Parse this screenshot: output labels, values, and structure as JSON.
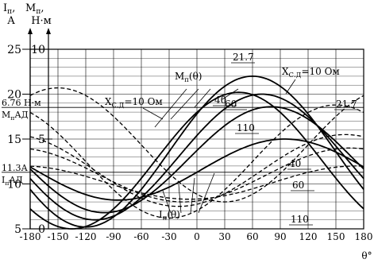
{
  "chart_data": {
    "type": "line",
    "y_axis_labels": {
      "left_top": "I",
      "left_sub": "п",
      "left_comma": ",",
      "left_unit": "А",
      "right_top": "M",
      "right_sub": "п",
      "right_comma": ",",
      "right_unit": "Н·м"
    },
    "xlabel": "θ°",
    "xlim": [
      -180,
      180
    ],
    "x_ticks": [
      -180,
      -150,
      -120,
      -90,
      -60,
      -30,
      0,
      30,
      60,
      90,
      120,
      150,
      180
    ],
    "x_tick_labels": [
      "-180",
      "-150",
      "-120",
      "-90",
      "-60",
      "-30",
      "0",
      "30",
      "60",
      "90",
      "120",
      "150",
      "180"
    ],
    "current_axis": {
      "range": [
        5,
        25
      ],
      "ticks": [
        5,
        10,
        15,
        20,
        25
      ],
      "labels": [
        "5",
        "10",
        "15",
        "20",
        "25"
      ]
    },
    "torque_axis": {
      "range": [
        0,
        10
      ],
      "ticks": [
        0,
        5,
        10
      ],
      "labels": [
        "0",
        "5",
        "10"
      ]
    },
    "reference_lines": [
      {
        "label": "6.76 Н·м",
        "sublabel": "M",
        "sub": "п",
        "sub2": "АД",
        "torque": 6.76
      },
      {
        "label": "11.3А",
        "sublabel": "I",
        "sub": "п",
        "sub2": "АД",
        "current": 11.3
      }
    ],
    "series": [
      {
        "group": "torque",
        "name": "21.7",
        "peak_theta": 60,
        "min": 0.1,
        "max": 8.5
      },
      {
        "group": "torque",
        "name": "40",
        "peak_theta": 70,
        "min": 0.5,
        "max": 7.5
      },
      {
        "group": "torque",
        "name": "60",
        "peak_theta": 80,
        "min": 0.9,
        "max": 6.8
      },
      {
        "group": "torque",
        "name": "110",
        "peak_theta": 95,
        "min": 1.6,
        "max": 5.0
      },
      {
        "group": "torque",
        "name": "10",
        "peak_theta": 45,
        "min": 0.0,
        "max": 7.6
      },
      {
        "group": "current",
        "name": "21.7",
        "peak_theta": 150,
        "min": 6.2,
        "max": 18.8
      },
      {
        "group": "current",
        "name": "40",
        "peak_theta": 160,
        "min": 7.5,
        "max": 15.5
      },
      {
        "group": "current",
        "name": "60",
        "peak_theta": 165,
        "min": 8.0,
        "max": 14.0
      },
      {
        "group": "current",
        "name": "110",
        "peak_theta": 172,
        "min": 8.3,
        "max": 12.0
      },
      {
        "group": "current",
        "name": "10",
        "peak_theta": 210,
        "min": 8.0,
        "max": 20.7
      }
    ],
    "annotations": {
      "torque_group": {
        "text": "M",
        "sub": "п",
        "arg": "(θ)"
      },
      "current_group": {
        "text": "I",
        "sub": "п",
        "arg": "(θ)"
      },
      "xcd_left": {
        "text": "X",
        "sub": "С.Д",
        "rest": "=10 Ом"
      },
      "xcd_right": {
        "text": "X",
        "sub": "С.Д",
        "rest": "=10 Ом"
      },
      "torque_labels": [
        "21.7",
        "40",
        "60",
        "110"
      ],
      "current_labels": [
        "21.7",
        "40",
        "60",
        "110"
      ]
    },
    "grid": true
  }
}
